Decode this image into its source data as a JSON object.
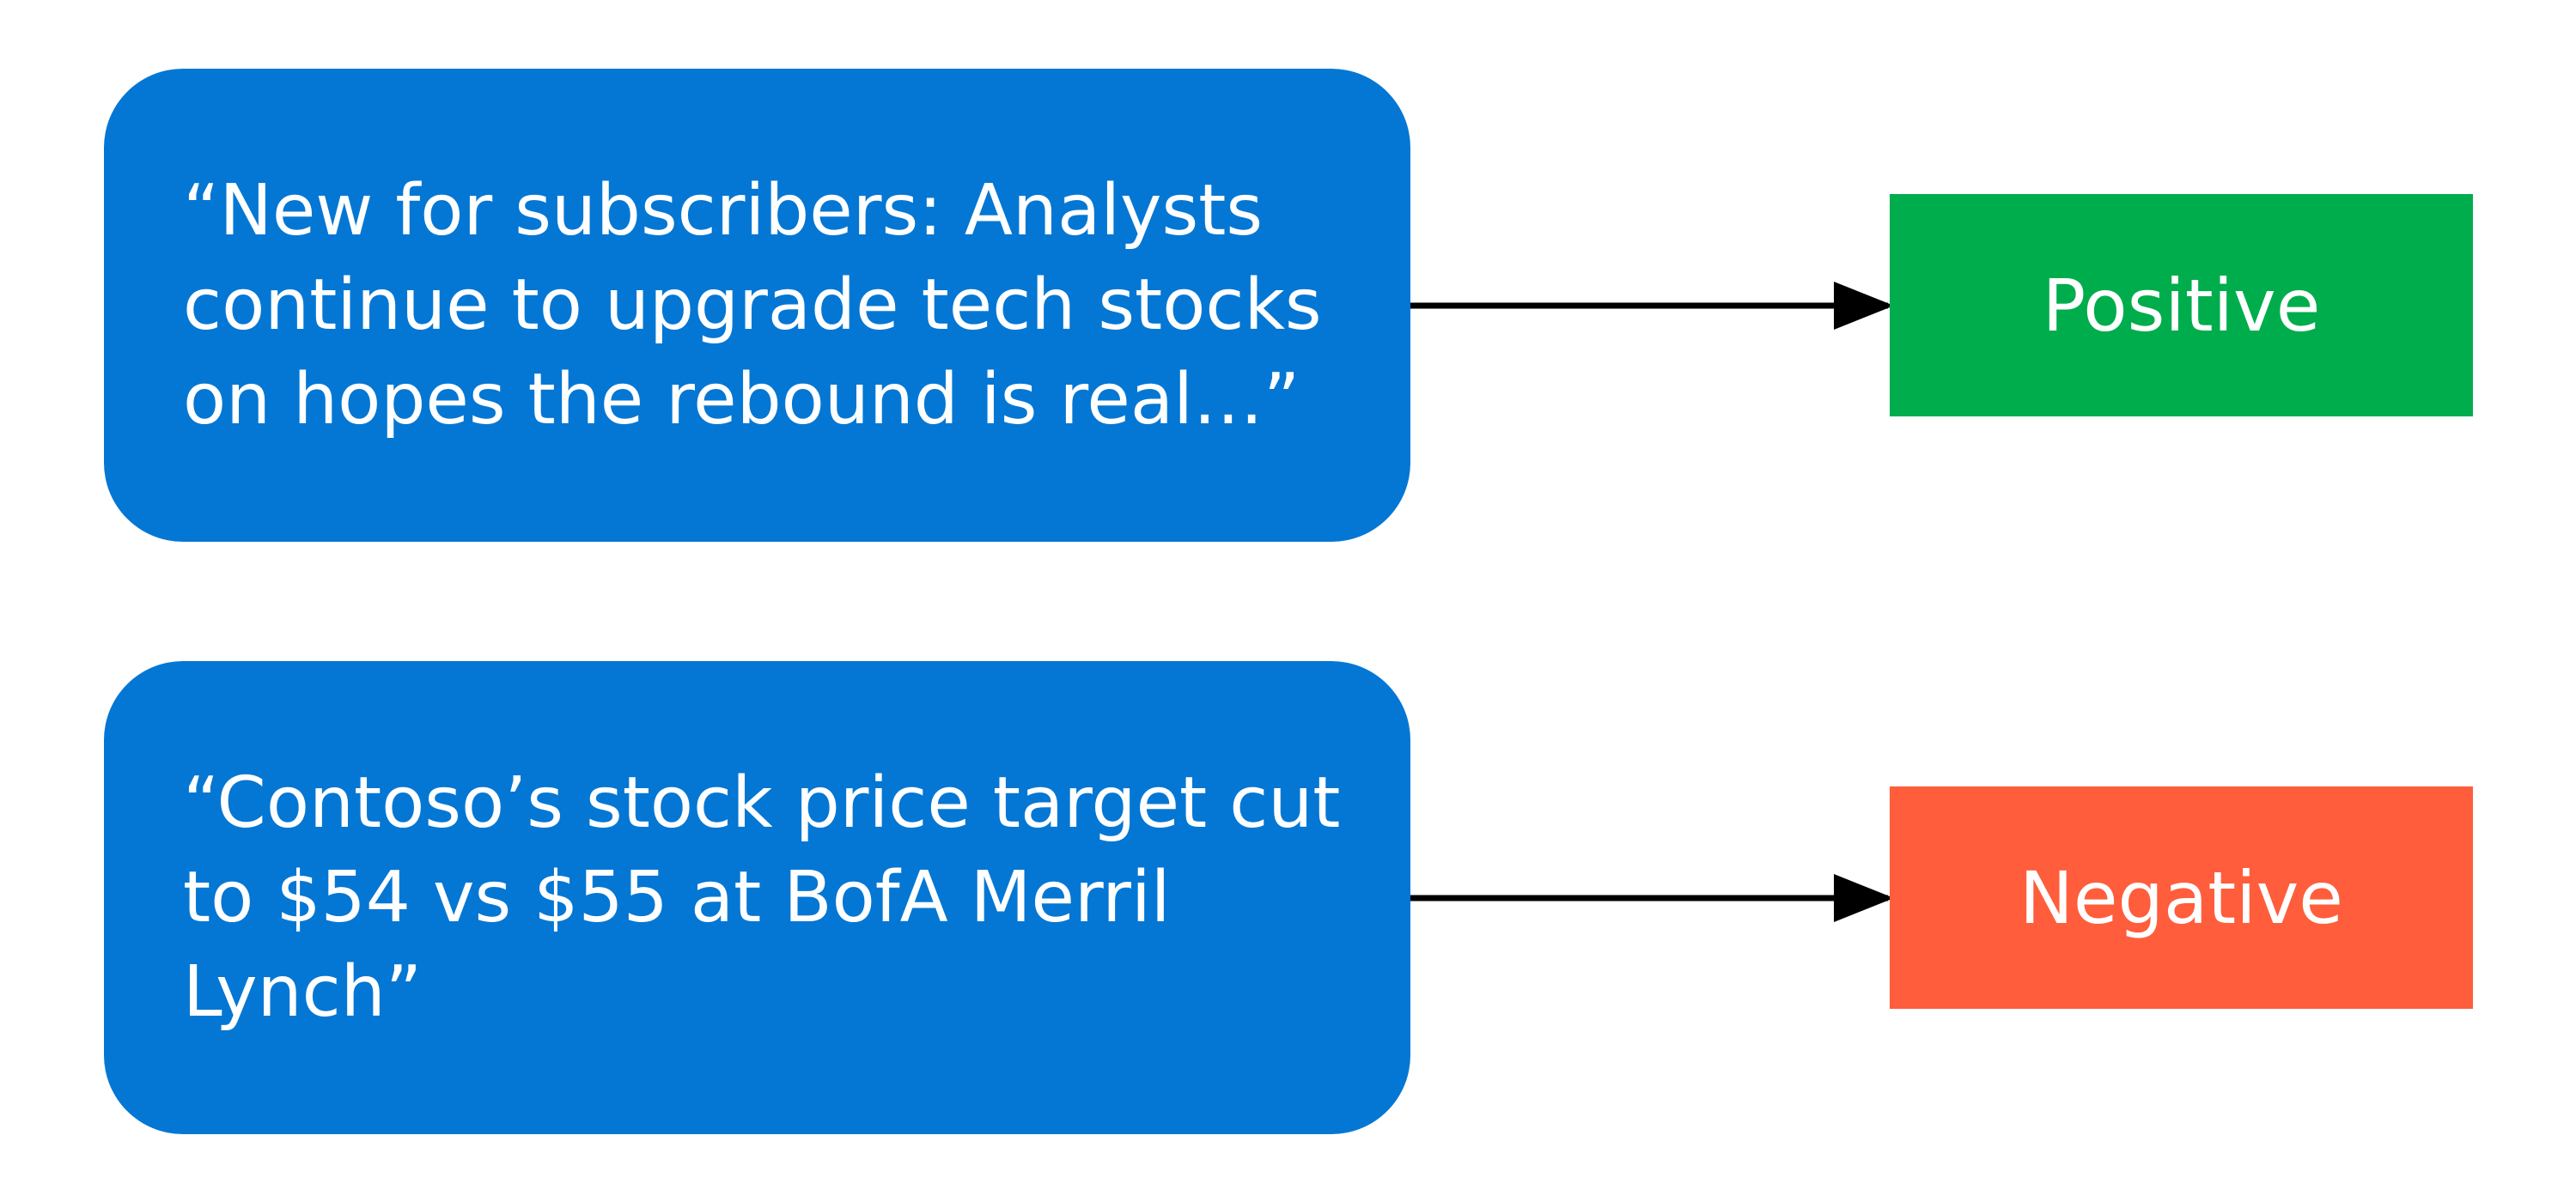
{
  "items": [
    {
      "quote": "“New for subscribers: Analysts continue to upgrade tech stocks on hopes the rebound is real…”",
      "label": "Positive",
      "label_color": "#00ad4c"
    },
    {
      "quote": "“Contoso’s stock price target cut to $54 vs $55 at BofA Merril Lynch”",
      "label": "Negative",
      "label_color": "#ff5d3b"
    }
  ],
  "colors": {
    "quote_box": "#0477d4",
    "arrow": "#000000",
    "text": "#ffffff"
  }
}
